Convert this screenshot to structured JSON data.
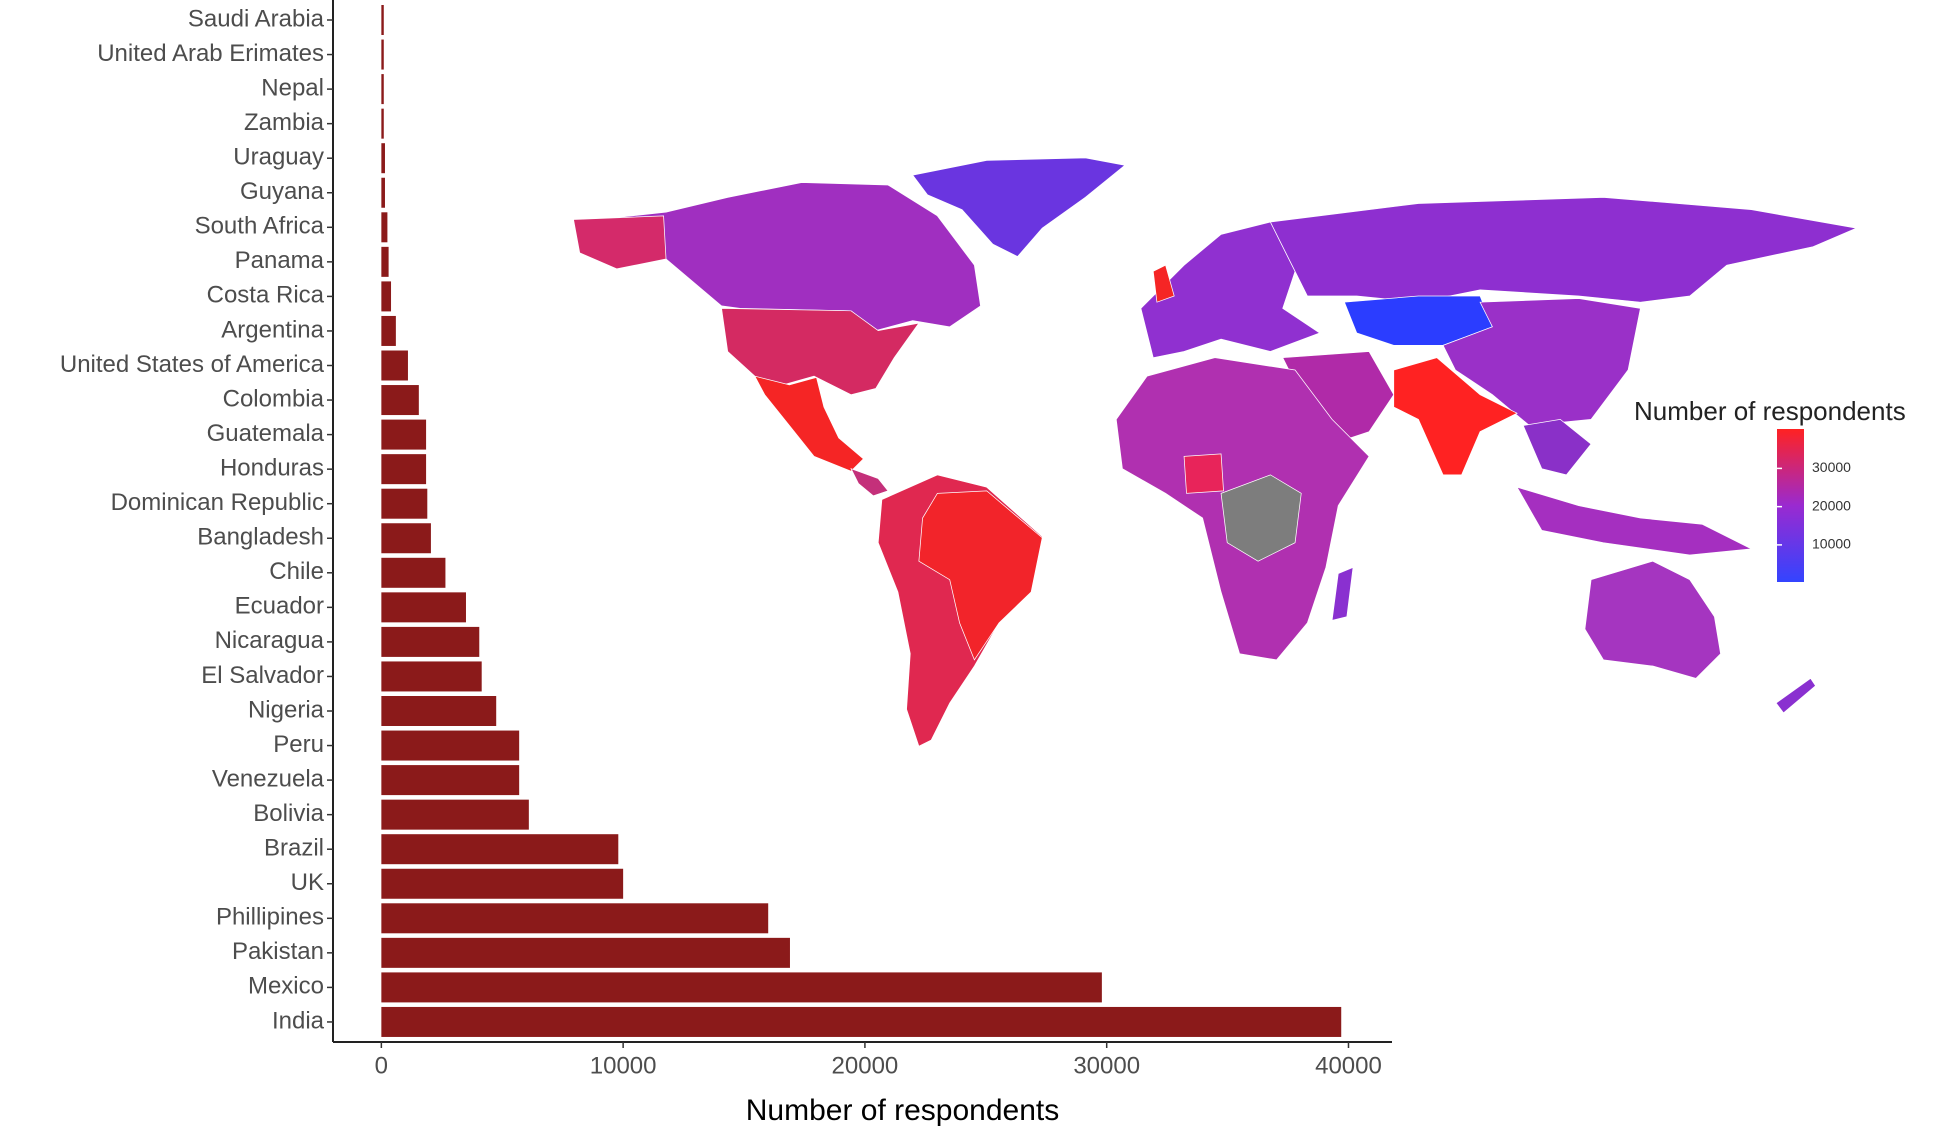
{
  "chart_data": {
    "type": "bar",
    "orientation": "horizontal",
    "categories": [
      "Saudi Arabia",
      "United Arab Erimates",
      "Nepal",
      "Zambia",
      "Uraguay",
      "Guyana",
      "South Africa",
      "Panama",
      "Costa Rica",
      "Argentina",
      "United States of America",
      "Colombia",
      "Guatemala",
      "Honduras",
      "Dominican Republic",
      "Bangladesh",
      "Chile",
      "Ecuador",
      "Nicaragua",
      "El Salvador",
      "Nigeria",
      "Peru",
      "Venezuela",
      "Bolivia",
      "Brazil",
      "UK",
      "Phillipines",
      "Pakistan",
      "Mexico",
      "India"
    ],
    "values": [
      100,
      100,
      100,
      100,
      150,
      150,
      250,
      300,
      400,
      600,
      1100,
      1550,
      1850,
      1850,
      1900,
      2050,
      2650,
      3500,
      4050,
      4150,
      4750,
      5700,
      5700,
      6100,
      9800,
      10000,
      16000,
      16900,
      29800,
      39700
    ],
    "color": "#8b1a1a",
    "x_label": "Number  of respondents",
    "xlim": [
      -2000,
      41800
    ],
    "xticks": [
      0,
      10000,
      20000,
      30000,
      40000
    ],
    "colorbar": {
      "title": "Number  of respondents",
      "lim": [
        300,
        40300
      ],
      "ticks": [
        10000,
        20000,
        30000
      ],
      "colors": [
        "#3344ff",
        "#9a2ad0",
        "#ff2222"
      ]
    }
  }
}
